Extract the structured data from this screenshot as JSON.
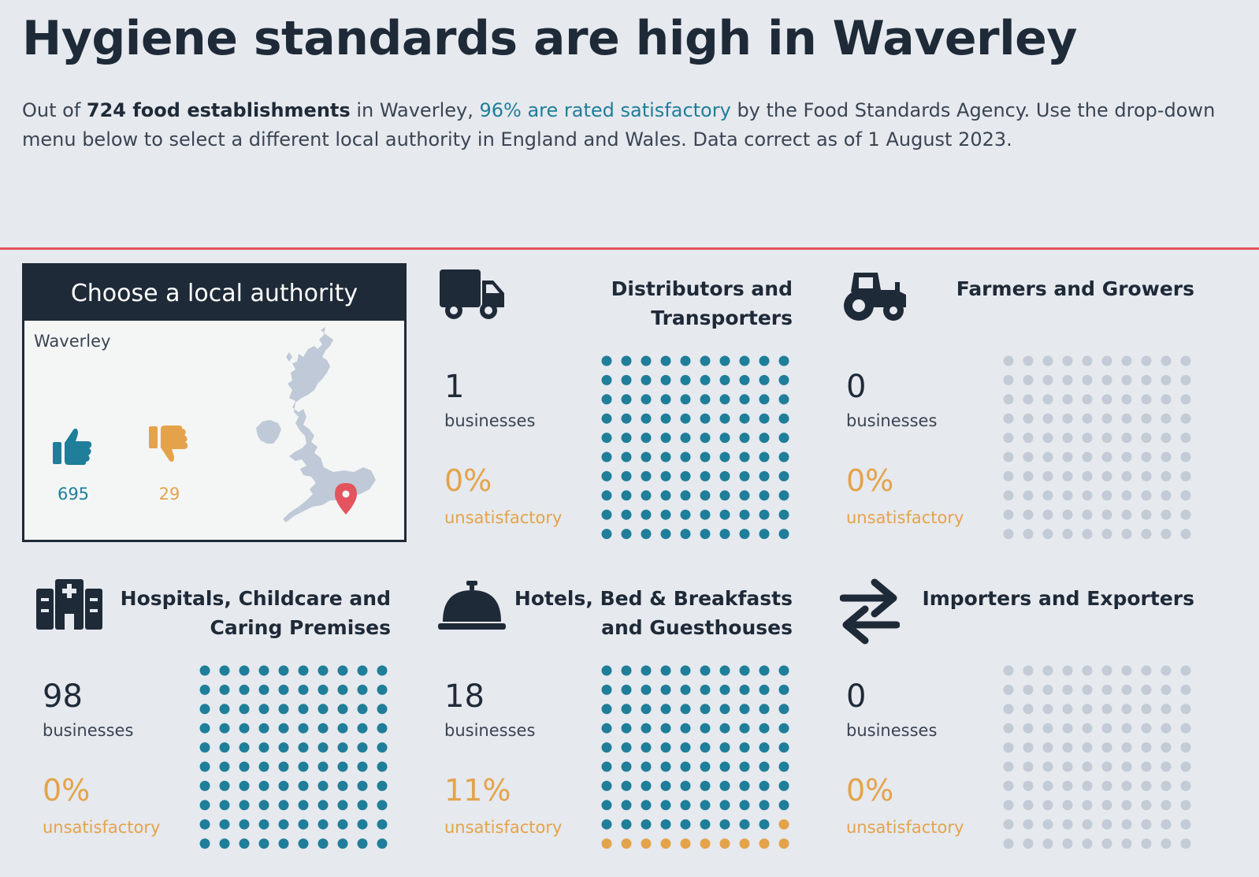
{
  "header": {
    "title": "Hygiene standards are high in Waverley",
    "intro": {
      "part1": "Out of ",
      "count_text": "724 food establishments",
      "part2": " in Waverley, ",
      "rate_text": "96% are rated satisfactory",
      "part3": " by the Food Standards Agency. Use the drop-down menu below to select a different local authority in England and Wales. Data correct as of 1 August 2023."
    }
  },
  "colors": {
    "satisfactory": "#1f7e99",
    "unsatisfactory": "#e4a34a",
    "empty": "#c3cbd6",
    "divider": "#e3545e",
    "dark": "#1f2a38"
  },
  "selector": {
    "title": "Choose a local authority",
    "value": "Waverley",
    "satisfactory_count": "695",
    "unsatisfactory_count": "29",
    "icons": {
      "good": "thumbs-up-icon",
      "bad": "thumbs-down-icon",
      "map": "uk-map-icon",
      "pin": "map-pin-icon"
    }
  },
  "cards": [
    {
      "icon": "truck-icon",
      "title": "Distributors and Transporters",
      "count": "1",
      "count_label": "businesses",
      "pct": "0%",
      "pct_label": "unsatisfactory",
      "satisfactory_share": 1.0,
      "unsatisfactory_share": 0.0
    },
    {
      "icon": "tractor-icon",
      "title": "Farmers and Growers",
      "count": "0",
      "count_label": "businesses",
      "pct": "0%",
      "pct_label": "unsatisfactory",
      "satisfactory_share": 0.0,
      "unsatisfactory_share": 0.0
    },
    {
      "icon": "hospital-icon",
      "title": "Hospitals, Childcare and Caring Premises",
      "count": "98",
      "count_label": "businesses",
      "pct": "0%",
      "pct_label": "unsatisfactory",
      "satisfactory_share": 1.0,
      "unsatisfactory_share": 0.0
    },
    {
      "icon": "service-bell-icon",
      "title": "Hotels, Bed & Breakfasts and Guesthouses",
      "count": "18",
      "count_label": "businesses",
      "pct": "11%",
      "pct_label": "unsatisfactory",
      "satisfactory_share": 0.89,
      "unsatisfactory_share": 0.11
    },
    {
      "icon": "exchange-arrows-icon",
      "title": "Importers and Exporters",
      "count": "0",
      "count_label": "businesses",
      "pct": "0%",
      "pct_label": "unsatisfactory",
      "satisfactory_share": 0.0,
      "unsatisfactory_share": 0.0
    }
  ]
}
